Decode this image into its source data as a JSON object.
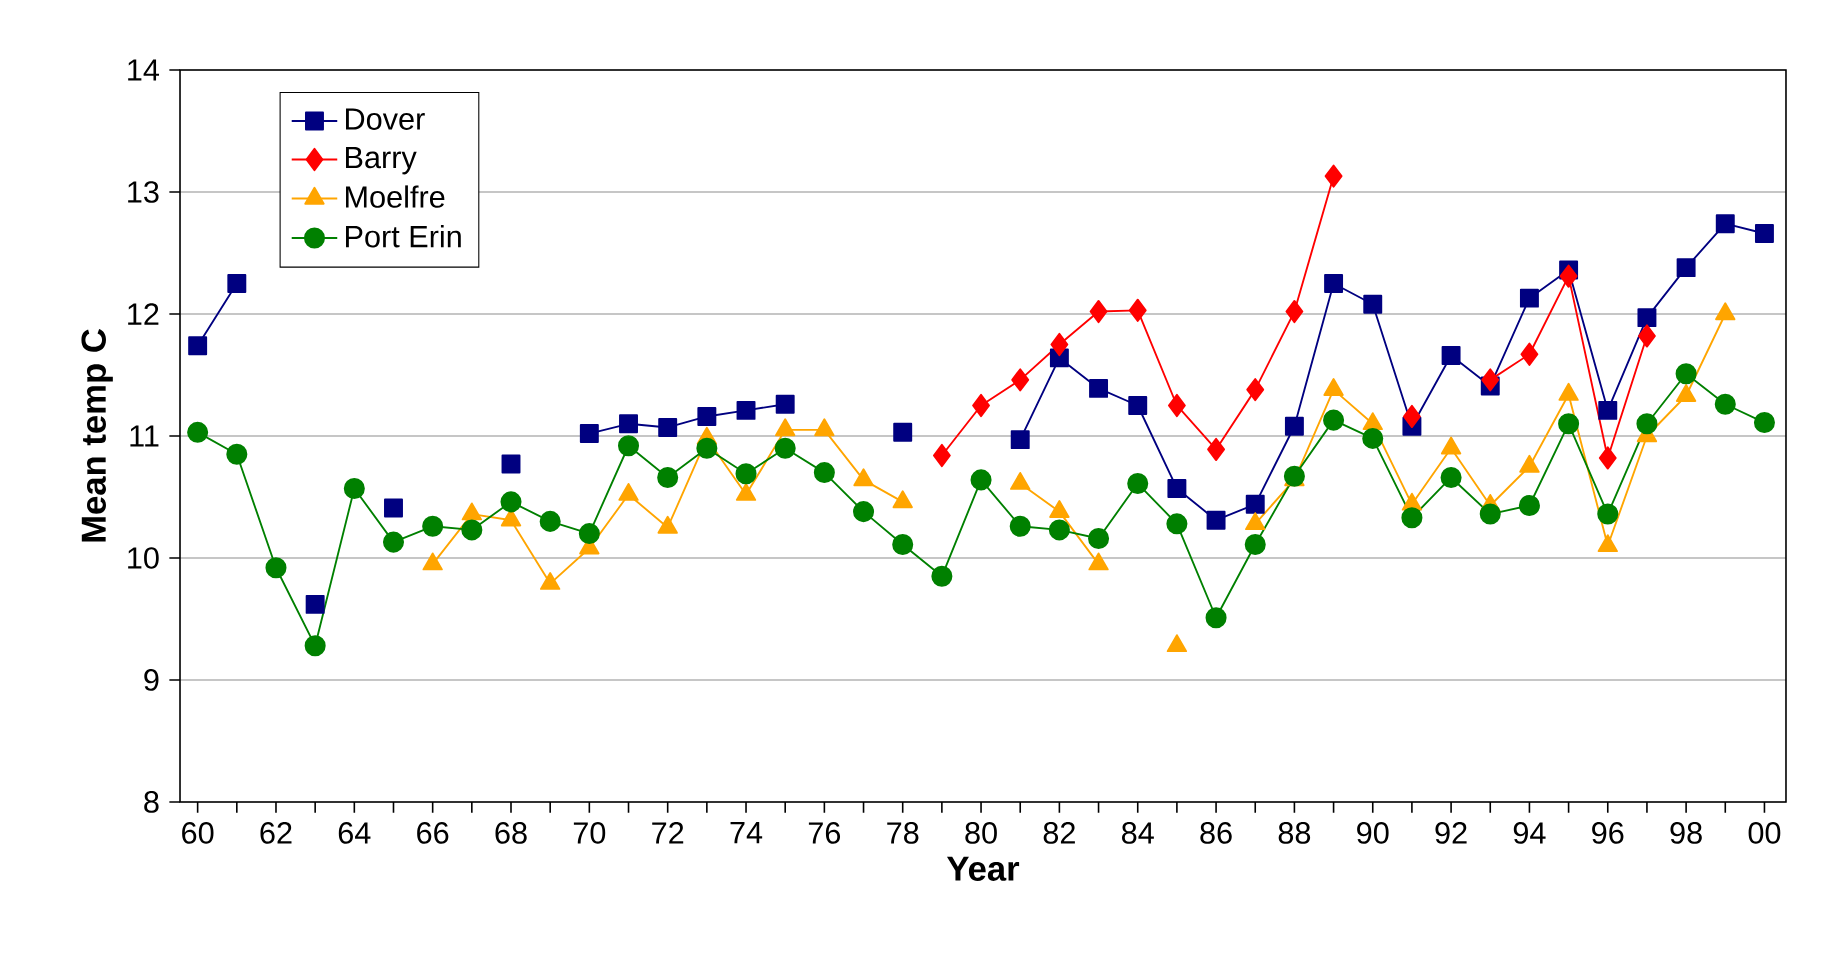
{
  "chart_data": {
    "type": "line",
    "xlabel": "Year",
    "ylabel": "Mean temp C",
    "categories": [
      "60",
      null,
      "62",
      null,
      "64",
      null,
      "66",
      null,
      "68",
      null,
      "70",
      null,
      "72",
      null,
      "74",
      null,
      "76",
      null,
      "78",
      null,
      "80",
      null,
      "82",
      null,
      "84",
      null,
      "86",
      null,
      "88",
      null,
      "90",
      null,
      "92",
      null,
      "94",
      null,
      "96",
      null,
      "98",
      null,
      "00"
    ],
    "ylim": [
      8,
      14
    ],
    "yticks": [
      8,
      9,
      10,
      11,
      12,
      13,
      14
    ],
    "grid": "y",
    "legend": "top left",
    "line_style": "solid",
    "series": [
      {
        "name": "Dover",
        "color": "#000080",
        "marker": "square",
        "values": [
          11.74,
          12.25,
          null,
          9.62,
          null,
          10.41,
          null,
          null,
          10.77,
          null,
          11.02,
          11.1,
          11.07,
          11.16,
          11.21,
          11.26,
          null,
          null,
          11.03,
          null,
          null,
          10.97,
          11.64,
          11.39,
          11.25,
          10.57,
          10.31,
          10.44,
          11.08,
          12.25,
          12.08,
          11.08,
          11.66,
          11.41,
          12.13,
          12.36,
          11.21,
          11.97,
          12.38,
          12.74,
          12.66
        ]
      },
      {
        "name": "Barry",
        "color": "#ff0000",
        "marker": "diamond",
        "values": [
          null,
          null,
          null,
          null,
          null,
          null,
          null,
          null,
          null,
          null,
          null,
          null,
          null,
          null,
          null,
          null,
          null,
          null,
          null,
          10.84,
          11.25,
          11.46,
          11.75,
          12.02,
          12.03,
          11.25,
          10.89,
          11.38,
          12.02,
          13.13,
          null,
          11.16,
          null,
          11.46,
          11.67,
          12.31,
          10.82,
          11.82,
          null,
          null,
          null
        ]
      },
      {
        "name": "Moelfre",
        "color": "#ffa500",
        "marker": "triangle",
        "values": [
          null,
          null,
          null,
          null,
          null,
          null,
          9.95,
          10.36,
          10.31,
          9.79,
          10.08,
          10.52,
          10.25,
          10.98,
          10.52,
          11.05,
          11.05,
          10.64,
          10.46,
          null,
          null,
          10.61,
          10.38,
          9.95,
          null,
          9.28,
          null,
          10.28,
          10.64,
          11.38,
          11.1,
          10.44,
          10.9,
          10.43,
          10.75,
          11.34,
          10.1,
          11.0,
          11.33,
          12.0,
          null
        ]
      },
      {
        "name": "Port Erin",
        "color": "#008000",
        "marker": "circle",
        "values": [
          11.03,
          10.85,
          9.92,
          9.28,
          10.57,
          10.13,
          10.26,
          10.23,
          10.46,
          10.3,
          10.2,
          10.92,
          10.66,
          10.9,
          10.69,
          10.9,
          10.7,
          10.38,
          10.11,
          9.85,
          10.64,
          10.26,
          10.23,
          10.16,
          10.61,
          10.28,
          9.51,
          10.11,
          10.67,
          11.13,
          10.98,
          10.33,
          10.66,
          10.36,
          10.43,
          11.1,
          10.36,
          11.1,
          11.51,
          11.26,
          11.11
        ]
      }
    ]
  }
}
